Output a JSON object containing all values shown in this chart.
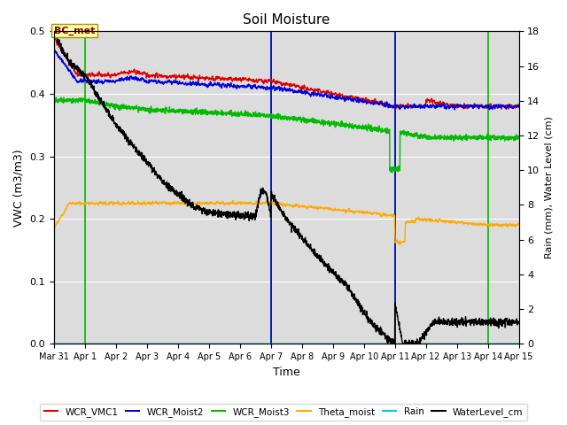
{
  "title": "Soil Moisture",
  "xlabel": "Time",
  "ylabel_left": "VWC (m3/m3)",
  "ylabel_right": "Rain (mm), Water Level (cm)",
  "ylim_left": [
    0.0,
    0.5
  ],
  "ylim_right": [
    0.0,
    18.0
  ],
  "bg_color": "#dcdcdc",
  "line_colors": {
    "WCR_VMC1": "#dd0000",
    "WCR_Moist2": "#0000dd",
    "WCR_Moist3": "#00bb00",
    "Theta_moist": "#ffaa00",
    "Rain": "#00cccc",
    "WaterLevel_cm": "#000000"
  },
  "green_vlines": [
    24,
    168,
    264,
    336
  ],
  "blue_vlines": [
    168,
    264
  ],
  "annotation_text": "BC_met",
  "xtick_labels": [
    "Mar 31",
    "Apr 1",
    "Apr 2",
    "Apr 3",
    "Apr 4",
    "Apr 5",
    "Apr 6",
    "Apr 7",
    "Apr 8",
    "Apr 9",
    "Apr 10",
    "Apr 11",
    "Apr 12",
    "Apr 13",
    "Apr 14",
    "Apr 15"
  ],
  "legend_labels": [
    "WCR_VMC1",
    "WCR_Moist2",
    "WCR_Moist3",
    "Theta_moist",
    "Rain",
    "WaterLevel_cm"
  ]
}
